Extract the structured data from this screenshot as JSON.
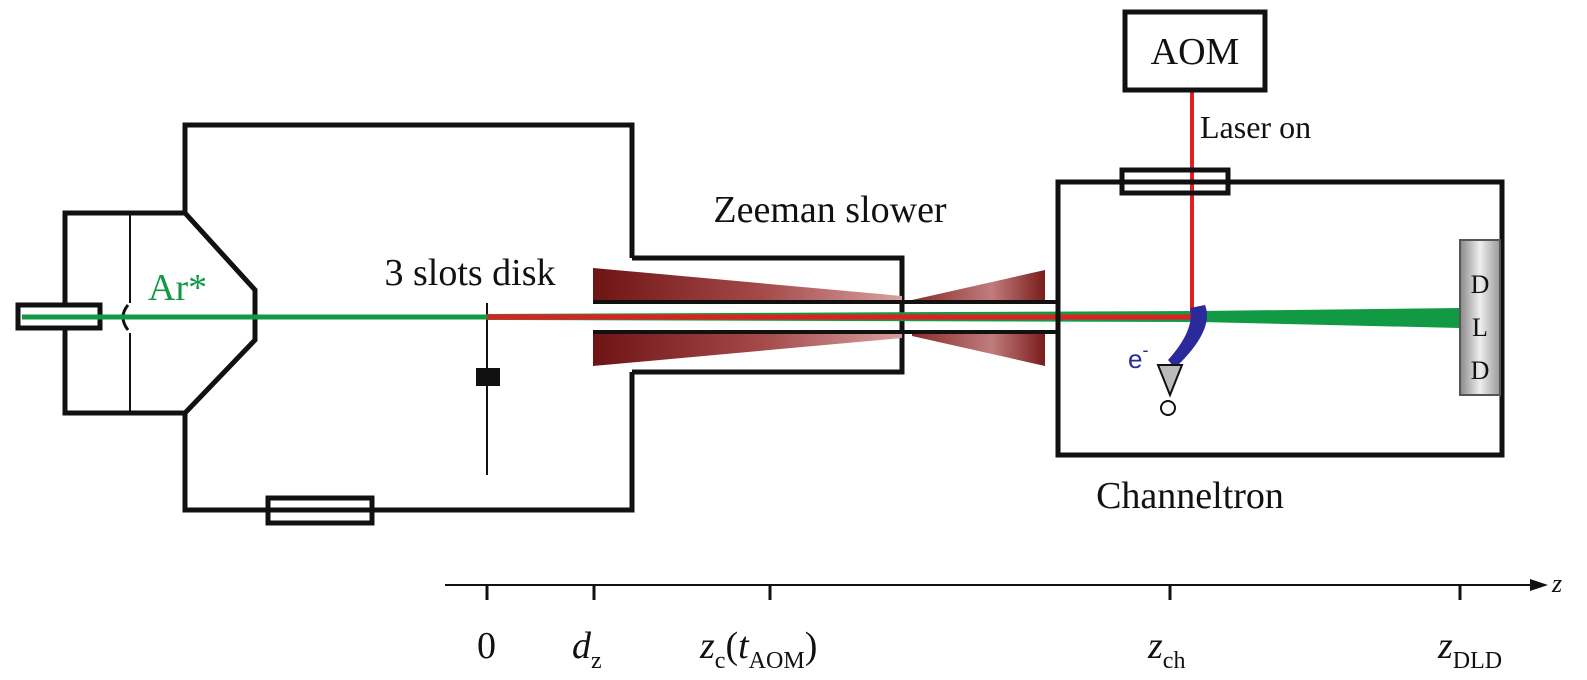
{
  "labels": {
    "aom": "AOM",
    "laser_on": "Laser on",
    "zeeman": "Zeeman slower",
    "ar": "Ar*",
    "disk": "3 slots disk",
    "channeltron": "Channeltron",
    "electron": {
      "main": "e",
      "sup": "-"
    },
    "dld": [
      "D",
      "L",
      "D"
    ]
  },
  "axis": {
    "name": "z",
    "labels": [
      [
        {
          "main": "0"
        }
      ],
      [
        {
          "italic": "d"
        },
        {
          "sub": "z"
        }
      ],
      [
        {
          "italic": "z"
        },
        {
          "sub": "c"
        },
        {
          "main": "("
        },
        {
          "italic": "t"
        },
        {
          "sub": "AOM"
        },
        {
          "main": ")"
        }
      ],
      [
        {
          "italic": "z"
        },
        {
          "sub": "ch"
        }
      ],
      [
        {
          "italic": "z"
        },
        {
          "sub": "DLD"
        }
      ]
    ]
  }
}
